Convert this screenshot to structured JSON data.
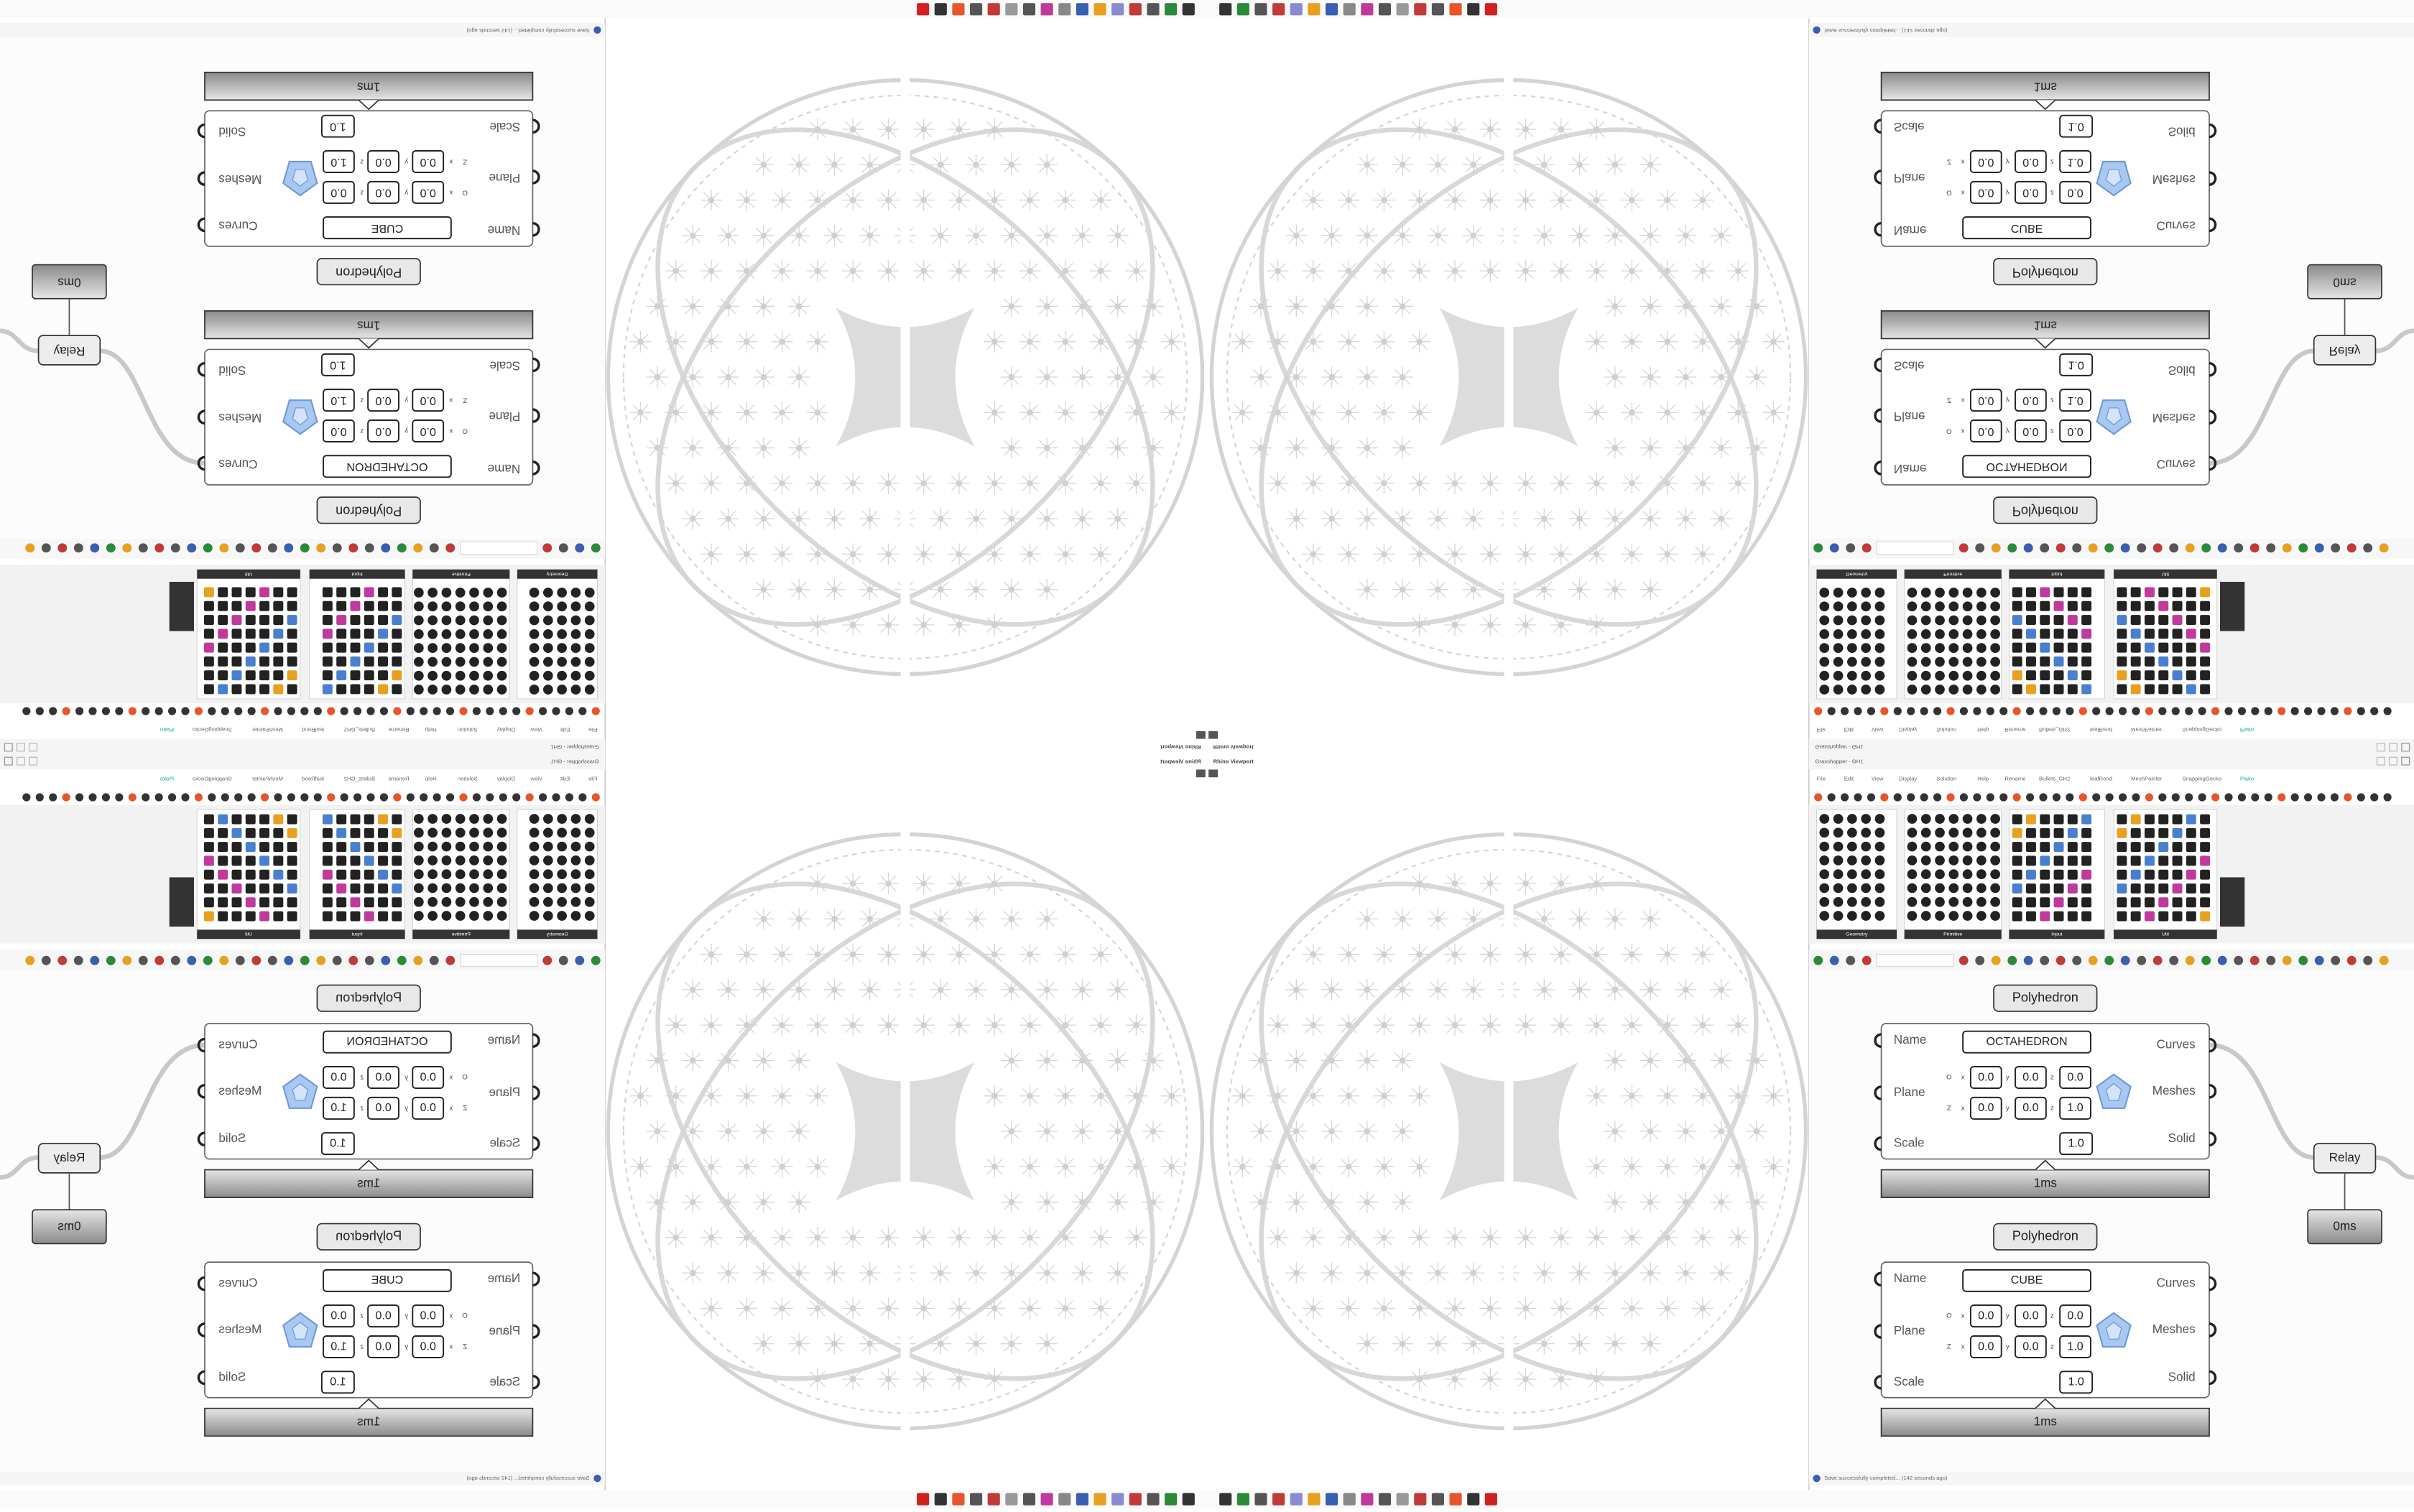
{
  "viewport": {
    "title": "Rhino Viewport"
  },
  "grasshopper": {
    "title": "Grasshopper - GH1",
    "menu": [
      "File",
      "Edit",
      "View",
      "Display",
      "Solution",
      "Help",
      "Rename",
      "Bullets_GH2",
      "leafRend",
      "MeshPainter",
      "SnappingGecko",
      "Plaito"
    ],
    "palette_groups": [
      "Geometry",
      "Primitive",
      "Input",
      "Util"
    ],
    "status": "Save successfully completed... (142 seconds ago)",
    "components": [
      {
        "title": "Polyhedron",
        "inputs": [
          "Name",
          "Plane",
          "Scale"
        ],
        "outputs": [
          "Curves",
          "Meshes",
          "Solid"
        ],
        "name": "OCTAHEDRON",
        "plane_rows": [
          "O",
          "Z"
        ],
        "axes": [
          "x",
          "y",
          "z"
        ],
        "origin": [
          "0.0",
          "0.0",
          "0.0"
        ],
        "zaxis": [
          "0.0",
          "0.0",
          "1.0"
        ],
        "scale": "1.0",
        "time": "1ms"
      },
      {
        "title": "Polyhedron",
        "inputs": [
          "Name",
          "Plane",
          "Scale"
        ],
        "outputs": [
          "Curves",
          "Meshes",
          "Solid"
        ],
        "name": "CUBE",
        "plane_rows": [
          "O",
          "Z"
        ],
        "axes": [
          "x",
          "y",
          "z"
        ],
        "origin": [
          "0.0",
          "0.0",
          "0.0"
        ],
        "zaxis": [
          "0.0",
          "0.0",
          "1.0"
        ],
        "scale": "1.0",
        "time": "1ms"
      }
    ],
    "relay": {
      "title": "Relay",
      "time": "0ms"
    }
  }
}
